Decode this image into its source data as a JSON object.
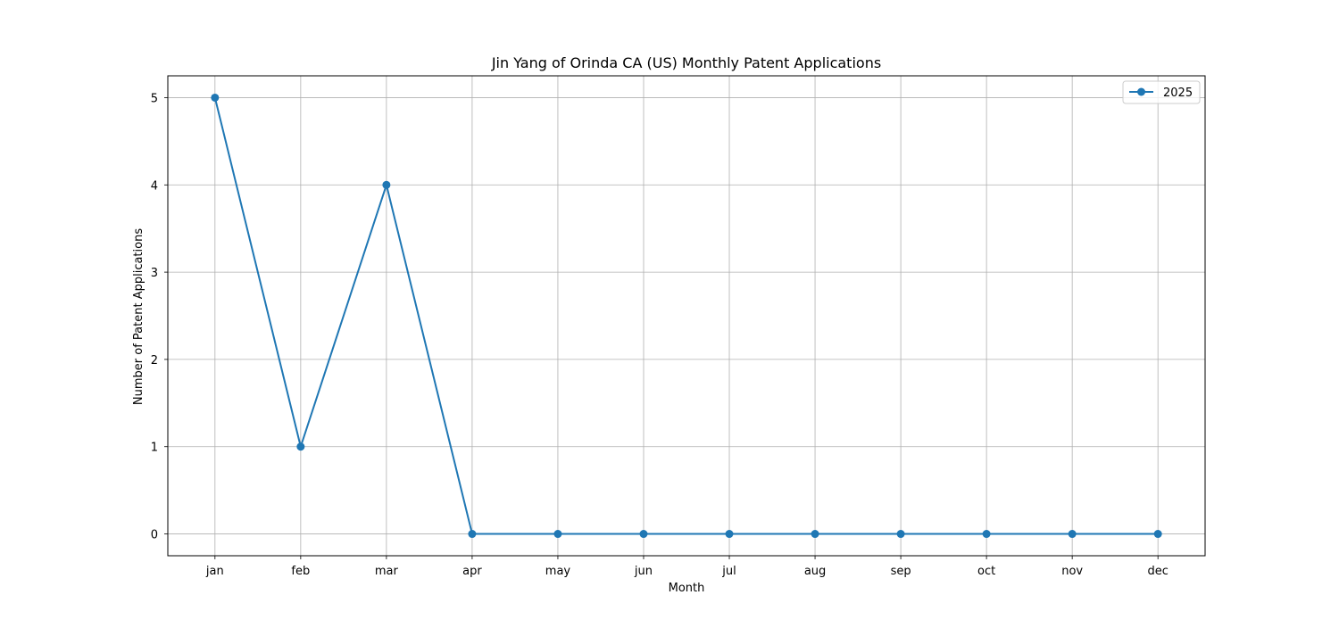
{
  "chart_data": {
    "type": "line",
    "title": "Jin Yang of Orinda CA (US) Monthly Patent Applications",
    "xlabel": "Month",
    "ylabel": "Number of Patent Applications",
    "categories": [
      "jan",
      "feb",
      "mar",
      "apr",
      "may",
      "jun",
      "jul",
      "aug",
      "sep",
      "oct",
      "nov",
      "dec"
    ],
    "series": [
      {
        "name": "2025",
        "values": [
          5,
          1,
          4,
          0,
          0,
          0,
          0,
          0,
          0,
          0,
          0,
          0
        ],
        "color": "#1f77b4",
        "marker": "circle"
      }
    ],
    "yticks": [
      0,
      1,
      2,
      3,
      4,
      5
    ],
    "ylim": [
      -0.25,
      5.25
    ],
    "grid": true,
    "legend_position": "top-right"
  }
}
